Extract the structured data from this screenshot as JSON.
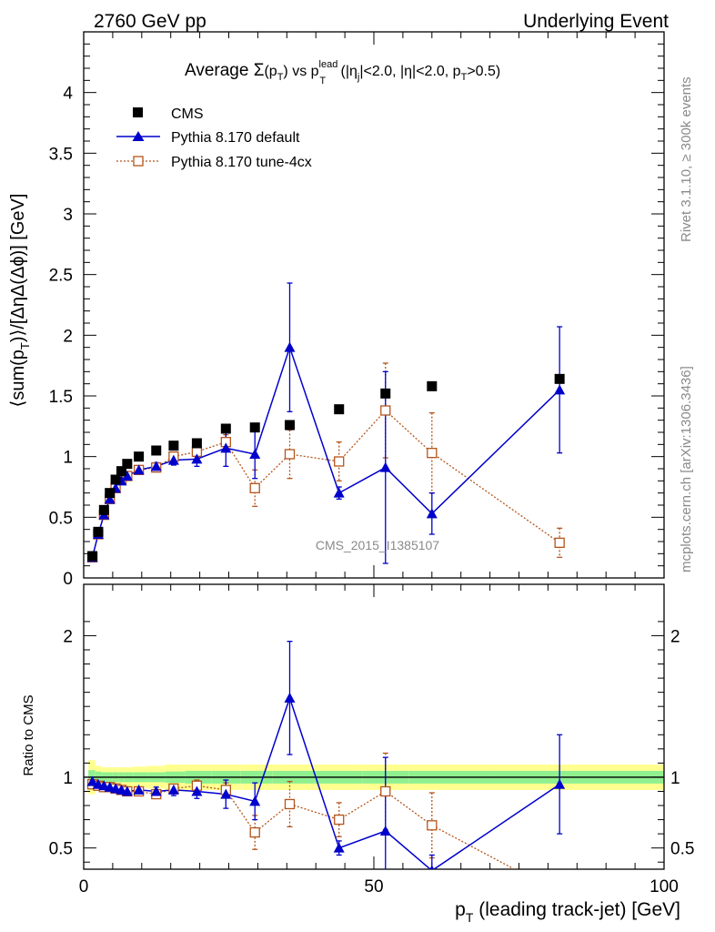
{
  "header": {
    "left": "2760 GeV pp",
    "right": "Underlying Event"
  },
  "side_labels": {
    "rivet": "Rivet 3.1.10, ≥ 300k events",
    "mcplots": "mcplots.cern.ch [arXiv:1306.3436]"
  },
  "watermark": "CMS_2015_I1385107",
  "title": {
    "prefix": "Average ",
    "sigma": "Σ",
    "pt_open": "(p",
    "pt_sub": "T",
    "pt_close": ")",
    "vs": " vs p",
    "lead_sup": "lead",
    "lead_sub": "T",
    "cuts_1": " (|η",
    "cuts_j": "j",
    "cuts_2": "|<2.0, |η|<2.0, p",
    "cuts_t": "T",
    "cuts_3": ">0.5)"
  },
  "ylabel_main": {
    "a": "⟨sum(p",
    "sub": "T",
    "b": ")⟩/[ΔηΔ(Δϕ)] [GeV]"
  },
  "ylabel_ratio": "Ratio to CMS",
  "xlabel": {
    "p": "p",
    "sub": "T",
    "rest": " (leading track-jet) [GeV]"
  },
  "legend": [
    "CMS",
    "Pythia 8.170 default",
    "Pythia 8.170 tune-4cx"
  ],
  "colors": {
    "cms": "#000000",
    "default": "#0000cc",
    "tune": "#b5541a",
    "band_inner": "#90f090",
    "band_outer": "#ffff90"
  },
  "chart_data": {
    "type": "scatter",
    "xlim": [
      0,
      100
    ],
    "ylim_main": [
      0,
      4.5
    ],
    "ylim_ratio": [
      0.35,
      2.3
    ],
    "x_ticks": [
      0,
      50,
      100
    ],
    "y_ticks_main": [
      0,
      0.5,
      1,
      1.5,
      2,
      2.5,
      3,
      3.5,
      4
    ],
    "y_ticks_ratio": [
      0.5,
      1,
      2
    ],
    "y_tick_labels_main": [
      "0",
      "0.5",
      "1",
      "1.5",
      "2",
      "2.5",
      "3",
      "3.5",
      "4"
    ],
    "y_tick_labels_ratio": [
      "0.5",
      "1",
      "2"
    ],
    "x_tick_labels": [
      "0",
      "50",
      "100"
    ],
    "x": [
      1.5,
      2.5,
      3.5,
      4.5,
      5.5,
      6.5,
      7.5,
      9.5,
      12.5,
      15.5,
      19.5,
      24.5,
      29.5,
      35.5,
      44,
      52,
      60,
      82
    ],
    "series": [
      {
        "name": "CMS",
        "y": [
          0.18,
          0.38,
          0.56,
          0.7,
          0.81,
          0.88,
          0.94,
          1.0,
          1.05,
          1.09,
          1.11,
          1.23,
          1.24,
          1.26,
          1.39,
          1.52,
          1.58,
          1.64
        ],
        "err": [
          0.01,
          0.01,
          0.01,
          0.01,
          0.01,
          0.01,
          0.01,
          0.01,
          0.01,
          0.01,
          0.02,
          0.02,
          0.02,
          0.03,
          0.03,
          0.04,
          0.04,
          0.05
        ],
        "band_inner": [
          0.05,
          0.04,
          0.035,
          0.035,
          0.035,
          0.035,
          0.035,
          0.035,
          0.035,
          0.04,
          0.045,
          0.045,
          0.045,
          0.045,
          0.045,
          0.045,
          0.045,
          0.045
        ],
        "band_outer": [
          0.12,
          0.08,
          0.07,
          0.07,
          0.07,
          0.07,
          0.07,
          0.075,
          0.08,
          0.09,
          0.09,
          0.09,
          0.09,
          0.09,
          0.09,
          0.09,
          0.09,
          0.09
        ]
      },
      {
        "name": "Pythia 8.170 default",
        "y": [
          0.17,
          0.36,
          0.52,
          0.65,
          0.74,
          0.8,
          0.84,
          0.89,
          0.92,
          0.97,
          0.98,
          1.07,
          1.02,
          1.9,
          0.7,
          0.91,
          0.53,
          1.55
        ],
        "err": [
          0.01,
          0.01,
          0.01,
          0.01,
          0.01,
          0.02,
          0.02,
          0.02,
          0.03,
          0.04,
          0.06,
          0.15,
          0.2,
          0.53,
          0.05,
          0.79,
          0.17,
          0.52
        ],
        "ratio": [
          0.97,
          0.95,
          0.94,
          0.93,
          0.92,
          0.91,
          0.9,
          0.91,
          0.9,
          0.91,
          0.9,
          0.88,
          0.83,
          1.56,
          0.5,
          0.62,
          0.34,
          0.95
        ],
        "ratio_err": [
          0.01,
          0.01,
          0.01,
          0.01,
          0.01,
          0.01,
          0.02,
          0.02,
          0.03,
          0.04,
          0.05,
          0.1,
          0.13,
          0.4,
          0.05,
          0.52,
          0.11,
          0.35
        ]
      },
      {
        "name": "Pythia 8.170 tune-4cx",
        "y": [
          0.17,
          0.36,
          0.52,
          0.65,
          0.74,
          0.81,
          0.84,
          0.89,
          0.91,
          1.0,
          1.04,
          1.12,
          0.74,
          1.02,
          0.96,
          1.38,
          1.03,
          0.29
        ],
        "err": [
          0.01,
          0.01,
          0.01,
          0.01,
          0.01,
          0.02,
          0.02,
          0.02,
          0.03,
          0.03,
          0.04,
          0.06,
          0.15,
          0.2,
          0.16,
          0.39,
          0.33,
          0.12
        ],
        "ratio": [
          0.95,
          0.94,
          0.93,
          0.93,
          0.92,
          0.91,
          0.9,
          0.9,
          0.88,
          0.92,
          0.94,
          0.91,
          0.61,
          0.81,
          0.7,
          0.9,
          0.66,
          0.18
        ],
        "ratio_err": [
          0.01,
          0.01,
          0.01,
          0.01,
          0.01,
          0.01,
          0.02,
          0.02,
          0.03,
          0.03,
          0.04,
          0.05,
          0.12,
          0.16,
          0.12,
          0.27,
          0.23,
          0.1
        ]
      }
    ]
  }
}
